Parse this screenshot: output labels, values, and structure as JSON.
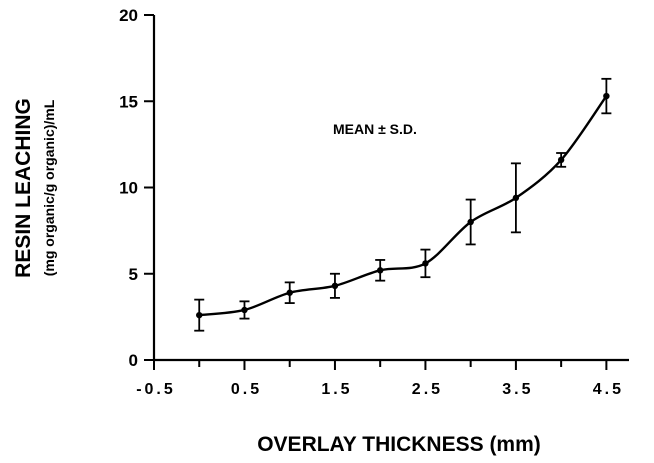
{
  "chart_data": {
    "type": "line",
    "title": "",
    "xlabel": "OVERLAY THICKNESS (mm)",
    "ylabel": "RESIN LEACHING",
    "ylabel_units": "(mg organic/g organic)/mL",
    "annotation": "MEAN ± S.D.",
    "xlim": [
      -0.5,
      4.75
    ],
    "ylim": [
      0,
      20
    ],
    "x_ticks": [
      -0.5,
      0.5,
      1.5,
      2.5,
      3.5,
      4.5
    ],
    "x_tick_labels": [
      "-0.5",
      "0.5",
      "1.5",
      "2.5",
      "3.5",
      "4.5"
    ],
    "x_minor_ticks": [
      0,
      1,
      2,
      3,
      4
    ],
    "y_ticks": [
      0,
      5,
      10,
      15,
      20
    ],
    "y_tick_labels": [
      "0",
      "5",
      "10",
      "15",
      "20"
    ],
    "grid": false,
    "series": [
      {
        "x": [
          0,
          0.5,
          1,
          1.5,
          2,
          2.5,
          3,
          3.5,
          4,
          4.5
        ],
        "y": [
          2.6,
          2.9,
          3.9,
          4.3,
          5.2,
          5.6,
          8.0,
          9.4,
          11.6,
          15.3
        ],
        "error": [
          0.9,
          0.5,
          0.6,
          0.7,
          0.6,
          0.8,
          1.3,
          2.0,
          0.4,
          1.0
        ]
      }
    ]
  }
}
